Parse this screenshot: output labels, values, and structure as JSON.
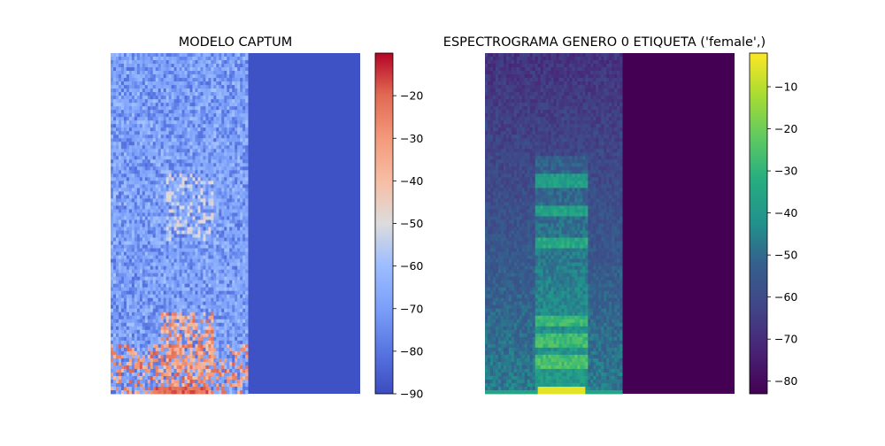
{
  "chart_data": [
    {
      "type": "heatmap",
      "title": "MODELO CAPTUM",
      "colormap": "coolwarm",
      "axes_visible": false,
      "colorbar": {
        "range": [
          -90,
          -10
        ],
        "ticks": [
          -20,
          -30,
          -40,
          -50,
          -60,
          -70,
          -80,
          -90
        ],
        "tick_labels": [
          "−20",
          "−30",
          "−40",
          "−50",
          "−60",
          "−70",
          "−80",
          "−90"
        ]
      },
      "content_fraction": 0.55,
      "background_value": -86
    },
    {
      "type": "heatmap",
      "title": "ESPECTROGRAMA GENERO 0 ETIQUETA ('female',)",
      "colormap": "viridis",
      "axes_visible": false,
      "colorbar": {
        "range": [
          -83,
          -2
        ],
        "ticks": [
          -10,
          -20,
          -30,
          -40,
          -50,
          -60,
          -70,
          -80
        ],
        "tick_labels": [
          "−10",
          "−20",
          "−30",
          "−40",
          "−50",
          "−60",
          "−70",
          "−80"
        ]
      },
      "content_fraction": 0.55,
      "background_value": -83
    }
  ]
}
